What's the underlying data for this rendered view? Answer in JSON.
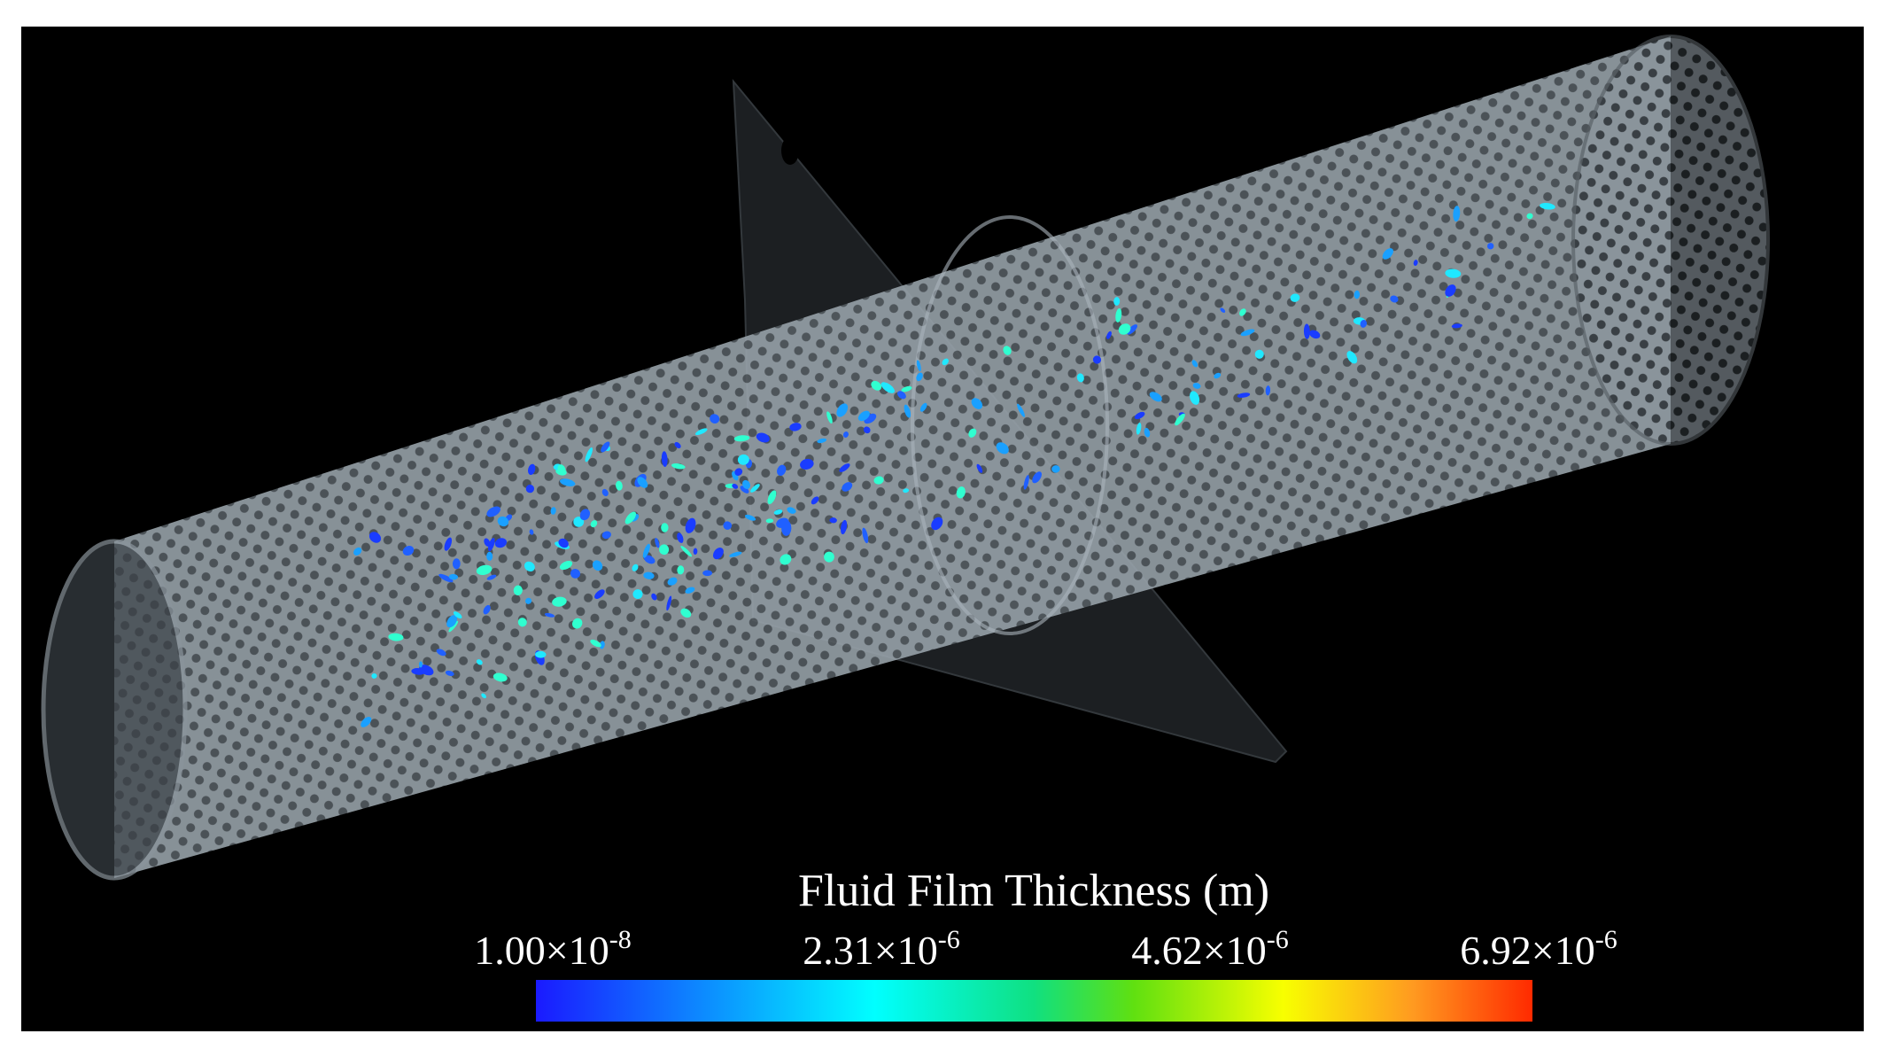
{
  "colorbar": {
    "title": "Fluid Film Thickness (m)",
    "ticks": [
      {
        "mantissa": "1.00×10",
        "exponent": "-8"
      },
      {
        "mantissa": "2.31×10",
        "exponent": "-6"
      },
      {
        "mantissa": "4.62×10",
        "exponent": "-6"
      },
      {
        "mantissa": "6.92×10",
        "exponent": "-6"
      }
    ]
  }
}
